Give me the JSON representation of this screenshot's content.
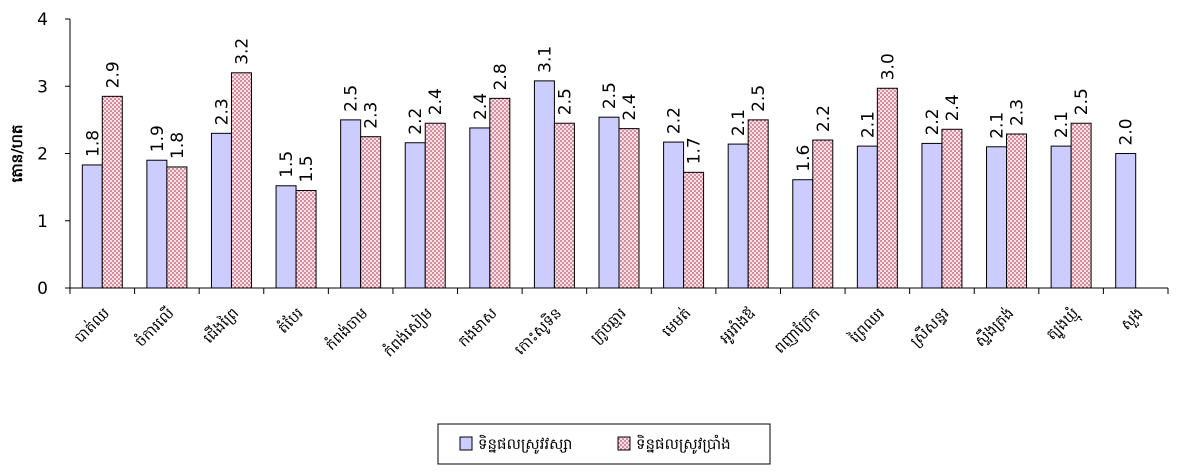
{
  "chart_data": {
    "type": "bar",
    "ylabel": "តោន/ហត",
    "ylim": [
      0,
      4
    ],
    "yticks": [
      0,
      1,
      2,
      3,
      4
    ],
    "grid": false,
    "legend_position": "bottom-center",
    "categories": [
      "បាត់ឈ",
      "ចំការលើ",
      "ជើងព្រៃ",
      "តំបែរ",
      "កំពង់ចាម",
      "កំពង់សៀម",
      "កងមាស",
      "កោះសូទិន",
      "ក្រូចឆ្មារ",
      "មេមត់",
      "អូររាំងឪ",
      "ពញាក្រែក",
      "ព្រៃឈរ",
      "ស្រីសន្ធរ",
      "ស្ទឹងត្រង់",
      "ត្បូងឃ្មុំ",
      "សួង"
    ],
    "series": [
      {
        "name": "ទិន្នផលស្រូវវស្សា",
        "color": "#ccccff",
        "values": [
          1.8,
          1.9,
          2.3,
          1.5,
          2.5,
          2.2,
          2.4,
          3.1,
          2.5,
          2.2,
          2.1,
          1.6,
          2.1,
          2.2,
          2.1,
          2.1,
          2.0
        ],
        "plot_values": [
          1.83,
          1.9,
          2.3,
          1.52,
          2.5,
          2.16,
          2.38,
          3.08,
          2.54,
          2.17,
          2.14,
          1.61,
          2.11,
          2.15,
          2.1,
          2.11,
          2.0
        ],
        "labels": [
          "1.8",
          "1.9",
          "2.3",
          "1.5",
          "2.5",
          "2.2",
          "2.4",
          "3.1",
          "2.5",
          "2.2",
          "2.1",
          "1.6",
          "2.1",
          "2.2",
          "2.1",
          "2.1",
          "2.0"
        ]
      },
      {
        "name": "ទិន្នផលស្រូវប្រាំង",
        "color": "#f2cfd3",
        "values": [
          2.9,
          1.8,
          3.2,
          1.5,
          2.3,
          2.4,
          2.8,
          2.5,
          2.4,
          1.7,
          2.5,
          2.2,
          3.0,
          2.4,
          2.3,
          2.5,
          null
        ],
        "plot_values": [
          2.85,
          1.8,
          3.2,
          1.45,
          2.25,
          2.45,
          2.82,
          2.45,
          2.37,
          1.72,
          2.5,
          2.2,
          2.97,
          2.36,
          2.29,
          2.45,
          null
        ],
        "labels": [
          "2.9",
          "1.8",
          "3.2",
          "1.5",
          "2.3",
          "2.4",
          "2.8",
          "2.5",
          "2.4",
          "1.7",
          "2.5",
          "2.2",
          "3.0",
          "2.4",
          "2.3",
          "2.5",
          ""
        ]
      }
    ]
  }
}
